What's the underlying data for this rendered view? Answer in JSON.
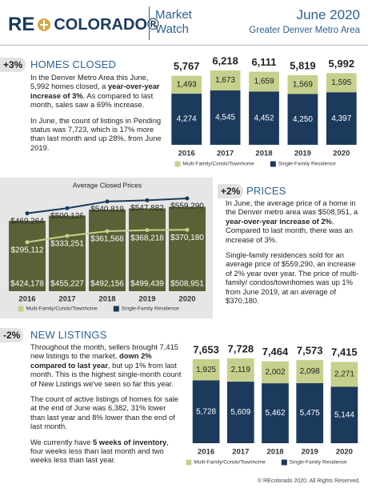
{
  "header": {
    "logo_left": "RE",
    "logo_right": "COLORADO®",
    "product": [
      "Market",
      "Watch"
    ],
    "date": "June 2020",
    "area": "Greater Denver Metro Area"
  },
  "sections": [
    {
      "change": "+3%",
      "title": "HOMES CLOSED",
      "paragraphs": [
        [
          {
            "text": "In the Denver Metro Area this June, 5,992 homes closed, a "
          },
          {
            "text": "year-over-year increase of 3%",
            "bold": true
          },
          {
            "text": ". As compared to last month, sales saw a 69% increase."
          }
        ],
        [
          {
            "text": "In June, the count of listings in Pending status was 7,723, which is 17% more than last month and up 28%, from June 2019."
          }
        ]
      ]
    },
    {
      "change": "+2%",
      "title": "PRICES",
      "paragraphs": [
        [
          {
            "text": "In June, the average price of a home in the Denver metro area was $508,951, a "
          },
          {
            "text": "year-over-year increase of 2%",
            "bold": true
          },
          {
            "text": ". Compared to last month, there was an increase of 3%."
          }
        ],
        [
          {
            "text": "Single-family residences sold for an average price of $559,290, an increase of 2% year over year. The price of multi-family/ condos/townhomes was up 1% from June 2019, at an average of $370,180."
          }
        ]
      ]
    },
    {
      "change": "-2%",
      "title": "NEW LISTINGS",
      "paragraphs": [
        [
          {
            "text": "Throughout the month, sellers brought 7,415 new listings to the market, "
          },
          {
            "text": "down 2% compared to last year",
            "bold": true
          },
          {
            "text": ", but up 1% from last month. This is the highest single-month count of New Listings we've seen so far this year."
          }
        ],
        [
          {
            "text": "The count of active listings of homes for sale at the end of June was 6,382, 31% lower than last year and 8% lower than the end of last month."
          }
        ],
        [
          {
            "text": "We currently have "
          },
          {
            "text": "5 weeks of inventory",
            "bold": true
          },
          {
            "text": ", four weeks less than last month and two weeks less than last year."
          }
        ]
      ]
    }
  ],
  "chart_data": [
    {
      "type": "stacked_bar",
      "categories": [
        "2016",
        "2017",
        "2018",
        "2019",
        "2020"
      ],
      "series": [
        {
          "name": "Multi-Family/Condo/Townhome",
          "color": "#c6d08c",
          "values": [
            1493,
            1673,
            1659,
            1569,
            1595
          ],
          "value_labels": [
            "1,493",
            "1,673",
            "1,659",
            "1,569",
            "1,595"
          ]
        },
        {
          "name": "Single-Family Residence",
          "color": "#1b3a5c",
          "values": [
            4274,
            4545,
            4452,
            4250,
            4397
          ],
          "value_labels": [
            "4,274",
            "4,545",
            "4,452",
            "4,250",
            "4,397"
          ]
        }
      ],
      "totals": {
        "values": [
          5767,
          6218,
          6111,
          5819,
          5992
        ],
        "value_labels": [
          "5,767",
          "6,218",
          "6,111",
          "5,819",
          "5,992"
        ]
      }
    },
    {
      "type": "bar_line",
      "title": "Average Closed Prices",
      "categories": [
        "2016",
        "2017",
        "2018",
        "2019",
        "2020"
      ],
      "series": [
        {
          "type": "bar",
          "color": "#5b6136",
          "values": [
            424178,
            455227,
            492156,
            499439,
            508951
          ],
          "value_labels": [
            "$424,178",
            "$455,227",
            "$492,156",
            "$499,439",
            "$508,951"
          ]
        },
        {
          "type": "line",
          "name": "Multi-Family/Condo/Townhome",
          "color": "#c6d08c",
          "values": [
            295112,
            333251,
            361568,
            368218,
            370180
          ],
          "value_labels": [
            "$295,112",
            "$333,251",
            "$361,568",
            "$368,218",
            "$370,180"
          ]
        },
        {
          "type": "line",
          "name": "Single-Family Residence",
          "color": "#1b3a5c",
          "values": [
            469264,
            500126,
            540819,
            547882,
            559290
          ],
          "value_labels": [
            "$469,264",
            "$500,126",
            "$540,819",
            "$547,882",
            "$559,290"
          ]
        }
      ]
    },
    {
      "type": "stacked_bar",
      "categories": [
        "2016",
        "2017",
        "2018",
        "2019",
        "2020"
      ],
      "series": [
        {
          "name": "Multi-Family/Condo/Townhome",
          "color": "#c6d08c",
          "values": [
            1925,
            2119,
            2002,
            2098,
            2271
          ],
          "value_labels": [
            "1,925",
            "2,119",
            "2,002",
            "2,098",
            "2,271"
          ]
        },
        {
          "name": "Single-Family Residence",
          "color": "#1b3a5c",
          "values": [
            5728,
            5609,
            5462,
            5475,
            5144
          ],
          "value_labels": [
            "5,728",
            "5,609",
            "5,462",
            "5,475",
            "5,144"
          ]
        }
      ],
      "totals": {
        "values": [
          7653,
          7728,
          7464,
          7573,
          7415
        ],
        "value_labels": [
          "7,653",
          "7,728",
          "7,464",
          "7,573",
          "7,415"
        ]
      }
    }
  ],
  "footer": "© REcolorado 2020. All Rights Reserved."
}
